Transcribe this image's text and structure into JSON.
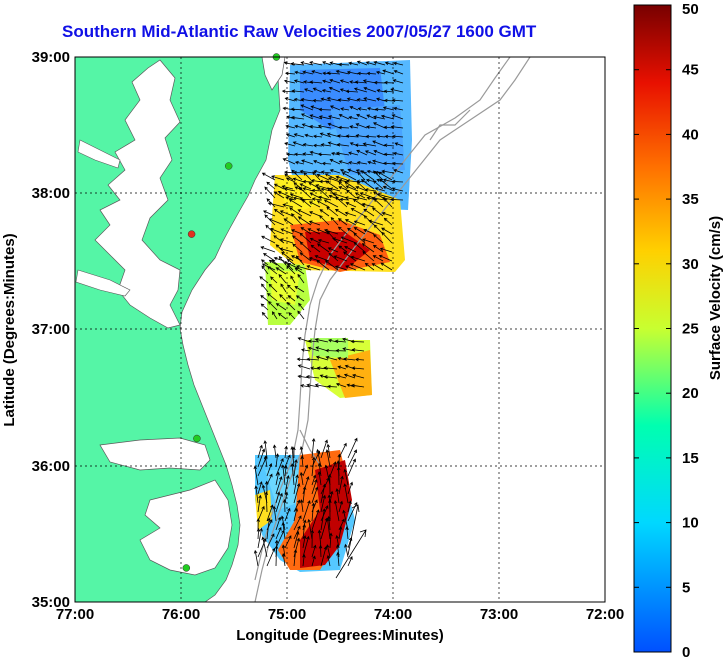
{
  "title": "Southern Mid-Atlantic Raw Velocities 2007/05/27 1600 GMT",
  "map": {
    "xlabel": "Longitude (Degrees:Minutes)",
    "ylabel": "Latitude (Degrees:Minutes)",
    "x_ticks": [
      "77:00",
      "76:00",
      "75:00",
      "74:00",
      "73:00",
      "72:00"
    ],
    "y_ticks": [
      "39:00",
      "38:00",
      "37:00",
      "36:00",
      "35:00"
    ],
    "xlim_deg_west": [
      77,
      72
    ],
    "ylim_deg_north": [
      35,
      39
    ],
    "grid": "dotted",
    "land_color": "#55f5a6",
    "water_color": "#ffffff",
    "bathymetry_color": "#9a9a9a"
  },
  "colorbar": {
    "label": "Surface Velocity (cm/s)",
    "ticks": [
      "0",
      "5",
      "10",
      "15",
      "20",
      "25",
      "30",
      "35",
      "40",
      "45",
      "50"
    ],
    "range": [
      0,
      50
    ],
    "colormap": "jet"
  },
  "stations": [
    {
      "lon": 75.1,
      "lat": 39.0,
      "color": "#22cc22"
    },
    {
      "lon": 75.55,
      "lat": 38.2,
      "color": "#22cc22"
    },
    {
      "lon": 75.9,
      "lat": 37.7,
      "color": "#e03020"
    },
    {
      "lon": 75.85,
      "lat": 36.2,
      "color": "#22cc22"
    },
    {
      "lon": 75.95,
      "lat": 35.25,
      "color": "#22cc22"
    }
  ]
}
